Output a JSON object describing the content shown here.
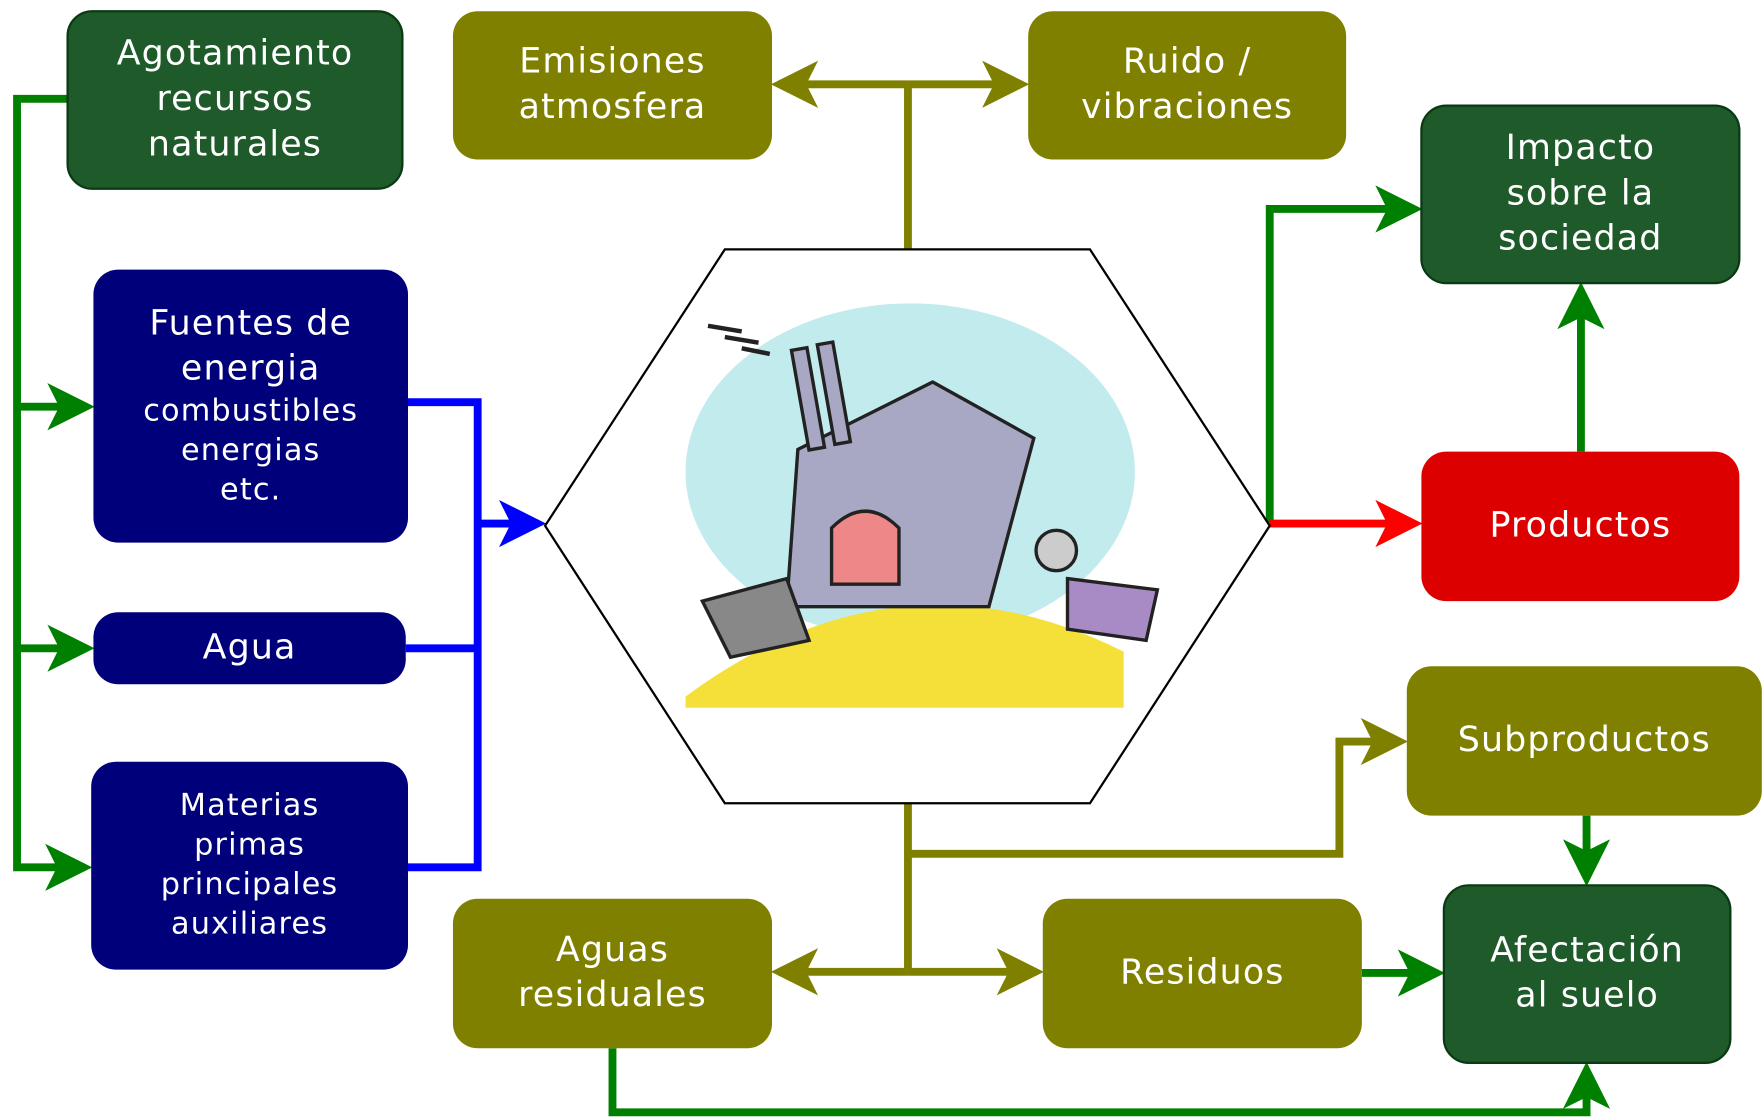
{
  "nodes": [
    {
      "lines": [
        "Agotamiento",
        "recursos",
        "naturales"
      ]
    },
    {
      "lines": [
        "Fuentes de",
        "energia",
        "combustibles",
        "energias",
        "etc."
      ]
    },
    {
      "lines": [
        "Agua"
      ]
    },
    {
      "lines": [
        "Materias",
        "primas",
        "principales",
        "auxiliares"
      ]
    },
    {
      "lines": [
        "Emisiones",
        "atmosfera"
      ]
    },
    {
      "lines": [
        "Ruido /",
        "vibraciones"
      ]
    },
    {
      "lines": [
        "Impacto",
        "sobre la",
        "sociedad"
      ]
    },
    {
      "lines": [
        "Productos"
      ]
    },
    {
      "lines": [
        "Subproductos"
      ]
    },
    {
      "lines": [
        "Afectación",
        "al suelo"
      ]
    },
    {
      "lines": [
        "Aguas",
        "residuales"
      ]
    },
    {
      "lines": [
        "Residuos"
      ]
    }
  ]
}
